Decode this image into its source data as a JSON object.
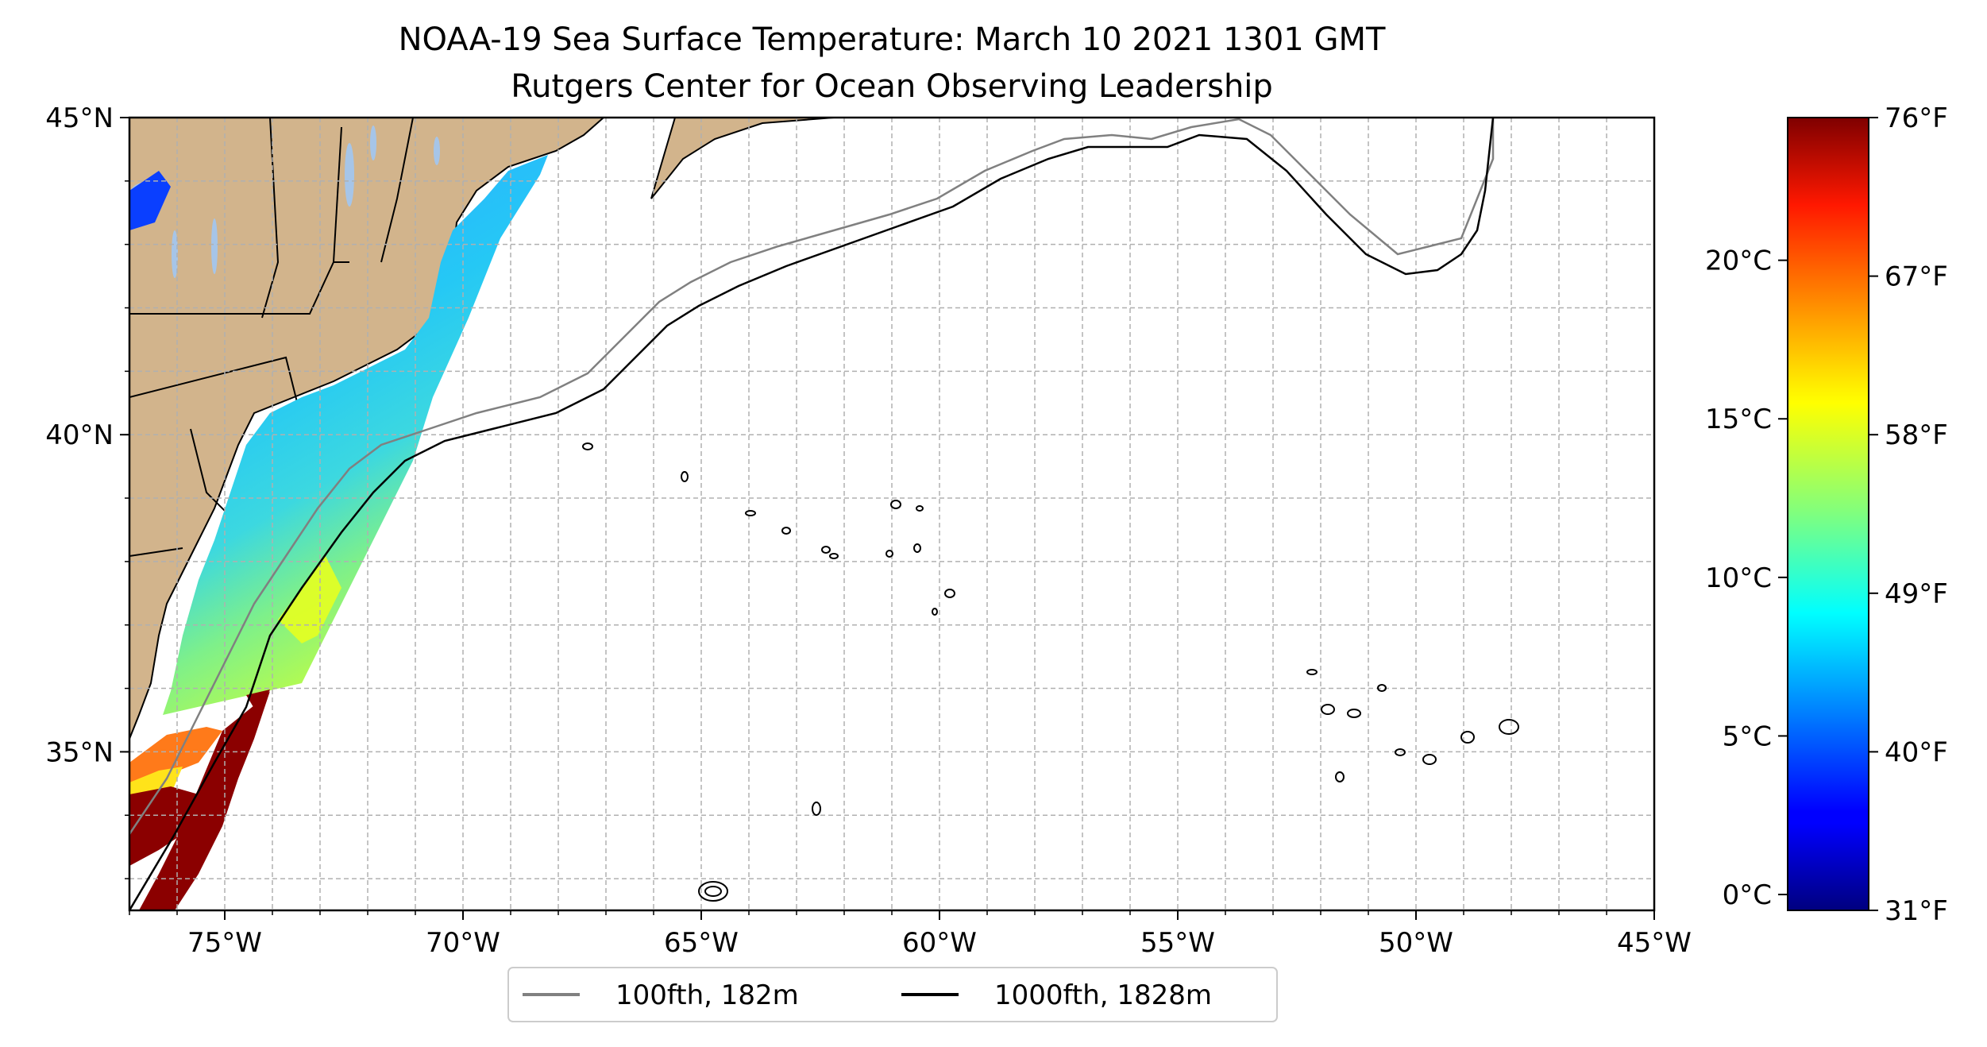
{
  "title": {
    "line1": "NOAA-19 Sea Surface Temperature: March 10 2021 1301 GMT",
    "line2": "Rutgers Center for Ocean Observing Leadership"
  },
  "map": {
    "lon_range": [
      -77,
      -45
    ],
    "lat_range": [
      32.5,
      45
    ],
    "lon_ticks": [
      {
        "value": -75,
        "label": "75°W"
      },
      {
        "value": -70,
        "label": "70°W"
      },
      {
        "value": -65,
        "label": "65°W"
      },
      {
        "value": -60,
        "label": "60°W"
      },
      {
        "value": -55,
        "label": "55°W"
      },
      {
        "value": -50,
        "label": "50°W"
      },
      {
        "value": -45,
        "label": "45°W"
      }
    ],
    "lat_ticks": [
      {
        "value": 45,
        "label": "45°N"
      },
      {
        "value": 40,
        "label": "40°N"
      },
      {
        "value": 35,
        "label": "35°N"
      }
    ],
    "gridlines": true,
    "land_color": "#d2b48c",
    "lake_color": "#a6c5e8"
  },
  "legend": {
    "items": [
      {
        "label": "100fth, 182m",
        "color": "#808080"
      },
      {
        "label": "1000fth, 1828m",
        "color": "#000000"
      }
    ],
    "placement": "bottom-center"
  },
  "colorbar": {
    "colormap": "jet",
    "range_c": [
      -0.5,
      24.5
    ],
    "celsius_ticks": [
      {
        "value": 0,
        "label": "0°C"
      },
      {
        "value": 5,
        "label": "5°C"
      },
      {
        "value": 10,
        "label": "10°C"
      },
      {
        "value": 15,
        "label": "15°C"
      },
      {
        "value": 20,
        "label": "20°C"
      }
    ],
    "fahrenheit_ticks": [
      {
        "label": "31°F",
        "pos": 0
      },
      {
        "label": "40°F",
        "pos": 0.2
      },
      {
        "label": "49°F",
        "pos": 0.4
      },
      {
        "label": "58°F",
        "pos": 0.6
      },
      {
        "label": "67°F",
        "pos": 0.8
      },
      {
        "label": "76°F",
        "pos": 1
      }
    ]
  }
}
